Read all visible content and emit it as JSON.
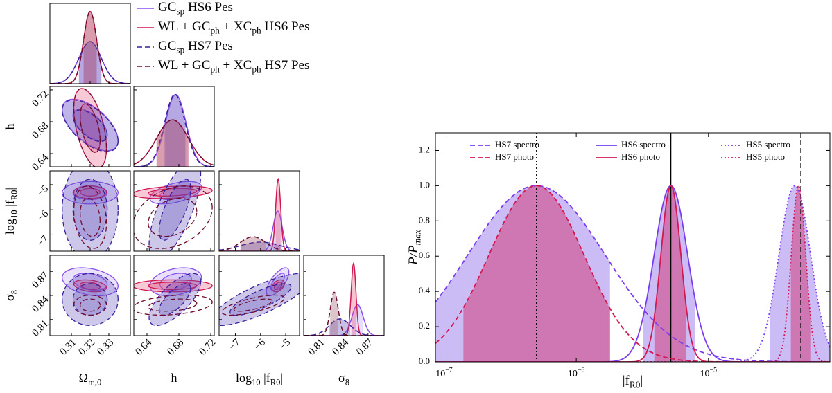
{
  "chart_data": [
    {
      "type": "corner",
      "parameters": [
        {
          "label": [
            "Ω",
            "m,0"
          ],
          "lim": [
            0.2985,
            0.3415
          ],
          "ticks": [
            0.31,
            0.32,
            0.33
          ]
        },
        {
          "label": [
            "h"
          ],
          "lim": [
            0.6235,
            0.7243
          ],
          "ticks": [
            0.64,
            0.68,
            0.72
          ]
        },
        {
          "label": [
            "log",
            "10",
            " |f",
            "R0",
            "|"
          ],
          "lim": [
            -7.65,
            -4.45
          ],
          "ticks": [
            {
              "value": -7,
              "label": "−7"
            },
            {
              "value": -6,
              "label": "−6"
            },
            {
              "value": -5,
              "label": "−5"
            }
          ]
        },
        {
          "label": [
            "σ",
            "8"
          ],
          "lim": [
            0.79,
            0.89
          ],
          "ticks": [
            0.81,
            0.84,
            0.87
          ]
        }
      ],
      "series": [
        {
          "name": [
            "GC",
            "sp",
            " HS6 Pes"
          ],
          "color": "#8a4ff0",
          "fill": "#b9a0f2",
          "dash": "solid",
          "means": [
            0.32,
            0.676,
            -5.32,
            0.857
          ],
          "sigmas": [
            0.006,
            0.013,
            0.18,
            0.007
          ],
          "corr": [
            -0.6,
            0,
            -0.3,
            0.5,
            0.3,
            0.7
          ]
        },
        {
          "name": [
            "WL + GC",
            "ph",
            " + XC",
            "ph",
            " HS6 Pes"
          ],
          "color": "#d3174f",
          "fill": "#e8507a",
          "dash": "solid",
          "means": [
            0.32,
            0.672,
            -5.3,
            0.852
          ],
          "sigmas": [
            0.0035,
            0.02,
            0.1,
            0.003
          ],
          "corr": [
            -0.5,
            0,
            -0.3,
            0.3,
            0,
            0.4
          ]
        },
        {
          "name": [
            "GC",
            "sp",
            " HS7 Pes"
          ],
          "color": "#3a1f9c",
          "fill": "#5b48b8",
          "dash": "dashed",
          "means": [
            0.32,
            0.675,
            -6.0,
            0.835
          ],
          "sigmas": [
            0.006,
            0.013,
            0.8,
            0.013
          ],
          "corr": [
            -0.6,
            0,
            0,
            0.7,
            0.7,
            0.8
          ]
        },
        {
          "name": [
            "WL + GC",
            "ph",
            " + XC",
            "ph",
            " HS7 Pes"
          ],
          "color": "#6e0b2c",
          "fill": "#a0586e",
          "dash": "dashed",
          "means": [
            0.32,
            0.672,
            -6.3,
            0.828
          ],
          "sigmas": [
            0.0035,
            0.02,
            0.5,
            0.005
          ],
          "corr": [
            -0.5,
            -0.2,
            0,
            0.3,
            0.3,
            0.7
          ]
        }
      ]
    },
    {
      "type": "gaussian",
      "xlabel": [
        "|f",
        "R0",
        "|"
      ],
      "ylabel": [
        "P/P",
        "max"
      ],
      "xscale": "log",
      "xlim": [
        8.6e-08,
        8.3e-05
      ],
      "ylim": [
        0,
        1.3
      ],
      "xticks": [
        {
          "value": 1e-07,
          "label": [
            "10",
            "−7"
          ]
        },
        {
          "value": 1e-06,
          "label": [
            "10",
            "−6"
          ]
        },
        {
          "value": 1e-05,
          "label": [
            "10",
            "−5"
          ]
        }
      ],
      "yticks": [
        {
          "value": 0,
          "label": "0.0"
        },
        {
          "value": 0.2,
          "label": "0.2"
        },
        {
          "value": 0.4,
          "label": "0.4"
        },
        {
          "value": 0.6,
          "label": "0.6"
        },
        {
          "value": 0.8,
          "label": "0.8"
        },
        {
          "value": 1,
          "label": "1.0"
        },
        {
          "value": 1.2,
          "label": "1.2"
        }
      ],
      "legend": "upper center",
      "reference_lines": [
        {
          "value": 5e-07,
          "dash": "dotted"
        },
        {
          "value": 5.2e-06,
          "dash": "solid"
        },
        {
          "value": 5e-05,
          "dash": "dashed"
        }
      ],
      "series": [
        {
          "name": "HS7 spectro",
          "color": "#7b3cf0",
          "fill": "#bba5f1",
          "dash": "dashed",
          "center": 5e-07,
          "sigma_dex": 0.52,
          "band": [
            6e-08,
            1.8e-06
          ]
        },
        {
          "name": "HS7 photo",
          "color": "#d3174f",
          "fill": "#d04a86",
          "dash": "dashed",
          "center": 5e-07,
          "sigma_dex": 0.36,
          "band": [
            1.4e-07,
            1.8e-06
          ]
        },
        {
          "name": "HS6 spectro",
          "color": "#7b3cf0",
          "fill": "#bba5f1",
          "dash": "solid",
          "center": 5.2e-06,
          "sigma_dex": 0.127,
          "band": [
            3.2e-06,
            7.9e-06
          ]
        },
        {
          "name": "HS6 photo",
          "color": "#d3174f",
          "fill": "#d04a86",
          "dash": "solid",
          "center": 5.2e-06,
          "sigma_dex": 0.076,
          "band": [
            3.9e-06,
            6.8e-06
          ]
        },
        {
          "name": "HS5 spectro",
          "color": "#7b3cf0",
          "fill": "#bba5f1",
          "dash": "dotted",
          "center": 4.5e-05,
          "sigma_dex": 0.12,
          "band": [
            2.9e-05,
            8.3e-05
          ]
        },
        {
          "name": "HS5 photo",
          "color": "#d3174f",
          "fill": "#d04a86",
          "dash": "dotted",
          "center": 4.8e-05,
          "sigma_dex": 0.055,
          "band": [
            4.2e-05,
            5.9e-05
          ]
        }
      ]
    }
  ]
}
